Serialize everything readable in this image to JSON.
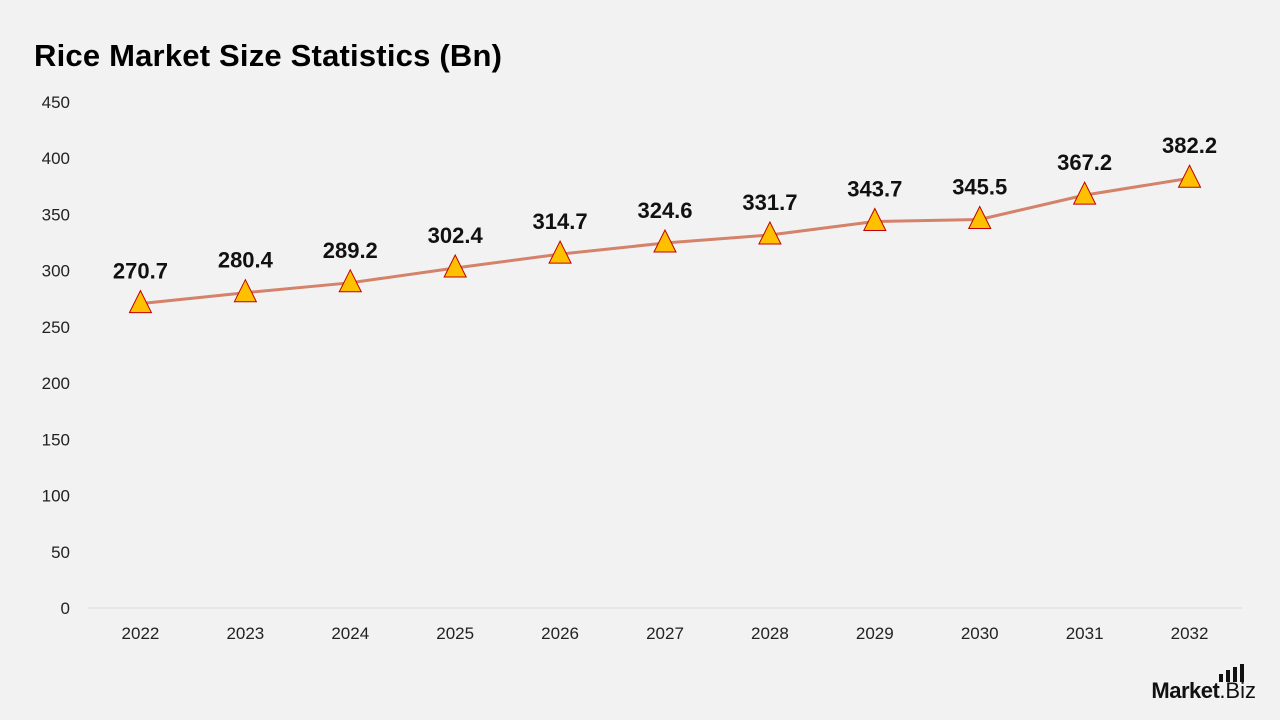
{
  "title": "Rice Market Size Statistics (Bn)",
  "brand": {
    "part1": "Market",
    "part2": ".Biz"
  },
  "colors": {
    "line": "#d4826a",
    "marker_fill": "#ffc000",
    "marker_stroke": "#c00000",
    "background": "#f2f2f2"
  },
  "chart_data": {
    "type": "line",
    "title": "Rice Market Size Statistics (Bn)",
    "categories": [
      "2022",
      "2023",
      "2024",
      "2025",
      "2026",
      "2027",
      "2028",
      "2029",
      "2030",
      "2031",
      "2032"
    ],
    "series": [
      {
        "values": [
          270.7,
          280.4,
          289.2,
          302.4,
          314.7,
          324.6,
          331.7,
          343.7,
          345.5,
          367.2,
          382.2
        ]
      }
    ],
    "data_labels": [
      "270.7",
      "280.4",
      "289.2",
      "302.4",
      "314.7",
      "324.6",
      "331.7",
      "343.7",
      "345.5",
      "367.2",
      "382.2"
    ],
    "yticks": [
      "0",
      "50",
      "100",
      "150",
      "200",
      "250",
      "300",
      "350",
      "400",
      "450"
    ],
    "ylim": [
      0,
      450
    ],
    "grid": false,
    "marker": "triangle"
  }
}
